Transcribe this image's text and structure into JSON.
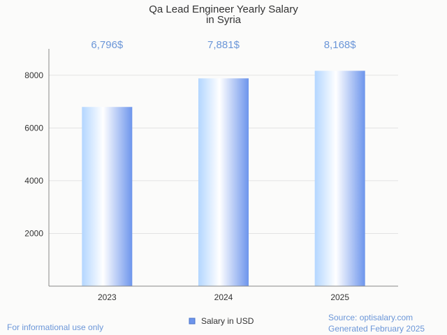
{
  "chart_data": {
    "type": "bar",
    "title_lines": [
      "Qa Lead Engineer Yearly Salary",
      "in Syria"
    ],
    "categories": [
      "2023",
      "2024",
      "2025"
    ],
    "values": [
      6796,
      7881,
      8168
    ],
    "value_labels": [
      "6,796$",
      "7,881$",
      "8,168$"
    ],
    "yticks": [
      2000,
      4000,
      6000,
      8000
    ],
    "ytick_labels": [
      "2000",
      "4000",
      "6000",
      "8000"
    ],
    "ylim": [
      0,
      9000
    ],
    "grid": true,
    "legend": {
      "position": "bottom",
      "entries": [
        "Salary in USD"
      ]
    },
    "colors": {
      "bar_light": "#ffffff",
      "bar_mid": "#b3d6ff",
      "bar_dark": "#6d95ec",
      "label": "#6b96d8"
    }
  },
  "footer": {
    "disclaimer": "For informational use only",
    "source": "Source: optisalary.com",
    "generated": "Generated February 2025"
  }
}
